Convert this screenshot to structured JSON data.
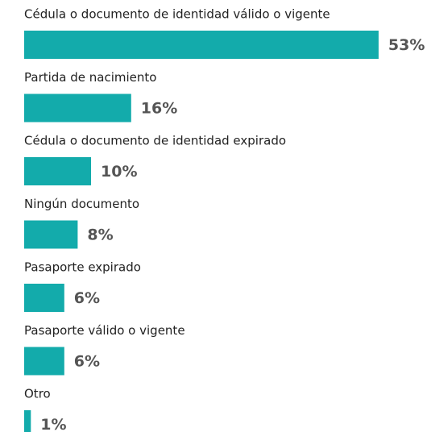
{
  "chart_data": {
    "type": "bar",
    "orientation": "horizontal",
    "categories": [
      "Cédula o documento de identidad válido o vigente",
      "Partida de nacimiento",
      "Cédula o documento de identidad expirado",
      "Ningún documento",
      "Pasaporte expirado",
      "Pasaporte válido o vigente",
      "Otro"
    ],
    "values": [
      53,
      16,
      10,
      8,
      6,
      6,
      1
    ],
    "value_labels": [
      "53%",
      "16%",
      "10%",
      "8%",
      "6%",
      "6%",
      "1%"
    ],
    "color": "#13abab"
  }
}
